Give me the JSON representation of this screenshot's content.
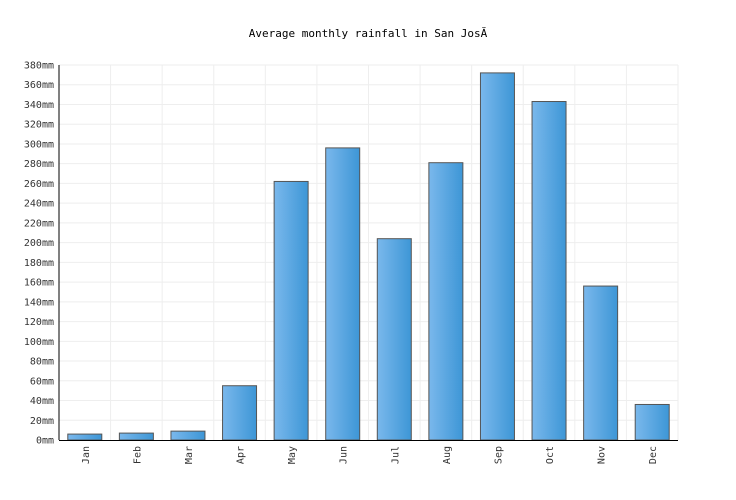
{
  "chart_data": {
    "type": "bar",
    "title": "Average monthly rainfall in San JosĂ",
    "xlabel": "",
    "ylabel": "",
    "unit_suffix": "mm",
    "categories": [
      "Jan",
      "Feb",
      "Mar",
      "Apr",
      "May",
      "Jun",
      "Jul",
      "Aug",
      "Sep",
      "Oct",
      "Nov",
      "Dec"
    ],
    "values": [
      6,
      7,
      9,
      55,
      262,
      296,
      204,
      281,
      372,
      343,
      156,
      36
    ],
    "ylim": [
      0,
      380
    ],
    "ytick_step": 20,
    "grid": true,
    "legend": "none",
    "colors": {
      "bar_light": "#7ab8ec",
      "bar_dark": "#3d96d6",
      "bar_stroke": "#555555",
      "grid": "#eeeeee",
      "axis": "#000000"
    }
  }
}
